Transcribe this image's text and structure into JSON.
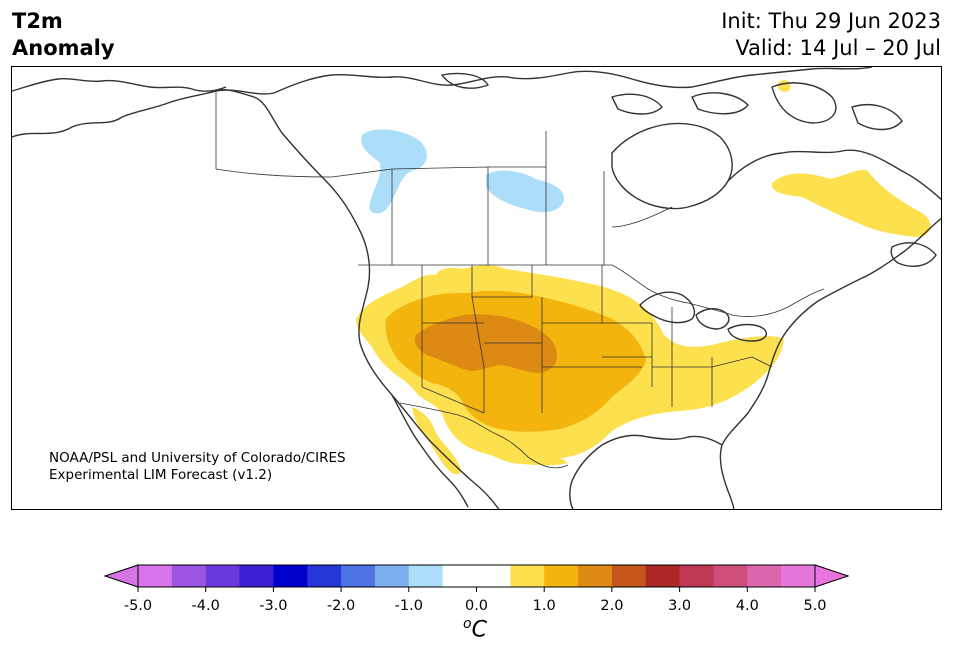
{
  "title": {
    "variable": "T2m",
    "subtitle": "Anomaly",
    "init": "Init: Thu 29 Jun 2023",
    "valid": "Valid: 14 Jul – 20 Jul"
  },
  "credit": {
    "line1": "NOAA/PSL and University of Colorado/CIRES",
    "line2": "Experimental LIM Forecast (v1.2)"
  },
  "colorbar": {
    "unit_symbol": "o",
    "unit_letter": "C",
    "tick_labels": [
      "-5.0",
      "-4.0",
      "-3.0",
      "-2.0",
      "-1.0",
      "0.0",
      "1.0",
      "2.0",
      "3.0",
      "4.0",
      "5.0"
    ],
    "colors": [
      "#d873ea",
      "#9b55e0",
      "#6b38dd",
      "#3a1fd2",
      "#0000cc",
      "#2537d8",
      "#4d74e2",
      "#7aaff0",
      "#acdefa",
      "#ffffff",
      "#ffffff",
      "#fde04e",
      "#f2b40d",
      "#dd8a14",
      "#c6561a",
      "#ae2727",
      "#c13854",
      "#cf4f7c",
      "#da66ae",
      "#e776dc"
    ],
    "extend_low_color": "#d873ea",
    "extend_high_color": "#e776dc"
  }
}
